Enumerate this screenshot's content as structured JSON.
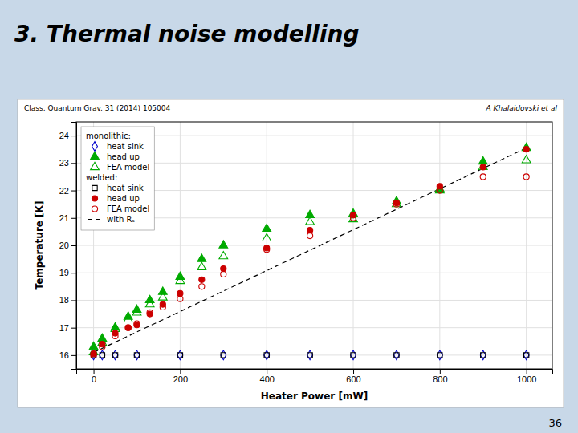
{
  "chart_data": {
    "type": "scatter",
    "title": "3. Thermal noise modelling",
    "annotations": [
      "Class. Quantum Grav. 31 (2014) 105004",
      "A Khalaidovski et al",
      "36"
    ],
    "x_label": "Heater Power [mW]",
    "y_label": "Temperature [K]",
    "xlim": [
      -40,
      1060
    ],
    "ylim": [
      15.5,
      24.5
    ],
    "xticks": [
      0,
      200,
      400,
      600,
      800,
      1000
    ],
    "yticks": [
      16,
      17,
      18,
      19,
      20,
      21,
      22,
      23,
      24
    ],
    "grid": true,
    "legend": "upper-left",
    "series": [
      {
        "name": "heat sink",
        "group": "monolithic:",
        "color": "#0000cc",
        "marker": "diamond-open",
        "x": [
          0,
          20,
          50,
          100,
          200,
          300,
          400,
          500,
          600,
          700,
          800,
          900,
          1000
        ],
        "values": [
          16.0,
          16.0,
          16.0,
          16.0,
          16.0,
          16.0,
          16.0,
          16.0,
          16.0,
          16.0,
          16.0,
          16.0,
          16.0
        ]
      },
      {
        "name": "head up",
        "group": "monolithic:",
        "color": "#00aa00",
        "marker": "triangle",
        "x": [
          0,
          20,
          50,
          80,
          100,
          130,
          160,
          200,
          250,
          300,
          400,
          500,
          600,
          700,
          800,
          900,
          1000
        ],
        "values": [
          16.3,
          16.6,
          17.0,
          17.4,
          17.65,
          18.0,
          18.3,
          18.85,
          19.5,
          20.0,
          20.6,
          21.1,
          21.15,
          21.6,
          22.0,
          23.05,
          23.55
        ]
      },
      {
        "name": "FEA model",
        "group": "monolithic:",
        "color": "#00aa00",
        "marker": "triangle-open",
        "x": [
          0,
          20,
          50,
          80,
          100,
          130,
          160,
          200,
          250,
          300,
          400,
          500,
          600,
          700,
          800,
          900,
          1000
        ],
        "values": [
          16.1,
          16.45,
          16.95,
          17.3,
          17.55,
          17.85,
          18.1,
          18.7,
          19.2,
          19.6,
          20.25,
          20.85,
          20.95,
          21.5,
          22.05,
          22.85,
          23.1
        ]
      },
      {
        "name": "heat sink",
        "group": "welded:",
        "color": "#000000",
        "marker": "square-open",
        "x": [
          0,
          20,
          50,
          100,
          200,
          300,
          400,
          500,
          600,
          700,
          800,
          900,
          1000
        ],
        "values": [
          16.0,
          16.0,
          16.0,
          16.0,
          16.0,
          16.0,
          16.0,
          16.0,
          16.0,
          16.0,
          16.0,
          16.0,
          16.0
        ]
      },
      {
        "name": "head up",
        "group": "welded:",
        "color": "#cc0000",
        "marker": "circle",
        "x": [
          0,
          20,
          50,
          80,
          100,
          130,
          160,
          200,
          250,
          300,
          400,
          500,
          600,
          700,
          800,
          900,
          1000
        ],
        "values": [
          16.05,
          16.4,
          16.8,
          17.0,
          17.1,
          17.5,
          17.85,
          18.25,
          18.75,
          19.15,
          19.9,
          20.55,
          21.1,
          21.55,
          22.15,
          22.85,
          23.5
        ]
      },
      {
        "name": "FEA model",
        "group": "welded:",
        "color": "#cc0000",
        "marker": "circle-open",
        "x": [
          0,
          20,
          50,
          80,
          100,
          130,
          160,
          200,
          250,
          300,
          400,
          500,
          600,
          700,
          800,
          900,
          1000
        ],
        "values": [
          16.0,
          16.3,
          16.7,
          17.0,
          17.15,
          17.55,
          17.75,
          18.05,
          18.5,
          18.95,
          19.85,
          20.35,
          21.0,
          21.5,
          22.0,
          22.5,
          22.5
        ]
      },
      {
        "name": "with Rₛ",
        "type": "line",
        "line_style": "dashed",
        "color": "#000000",
        "x": [
          0,
          1000
        ],
        "values": [
          16.1,
          23.55
        ]
      }
    ]
  }
}
